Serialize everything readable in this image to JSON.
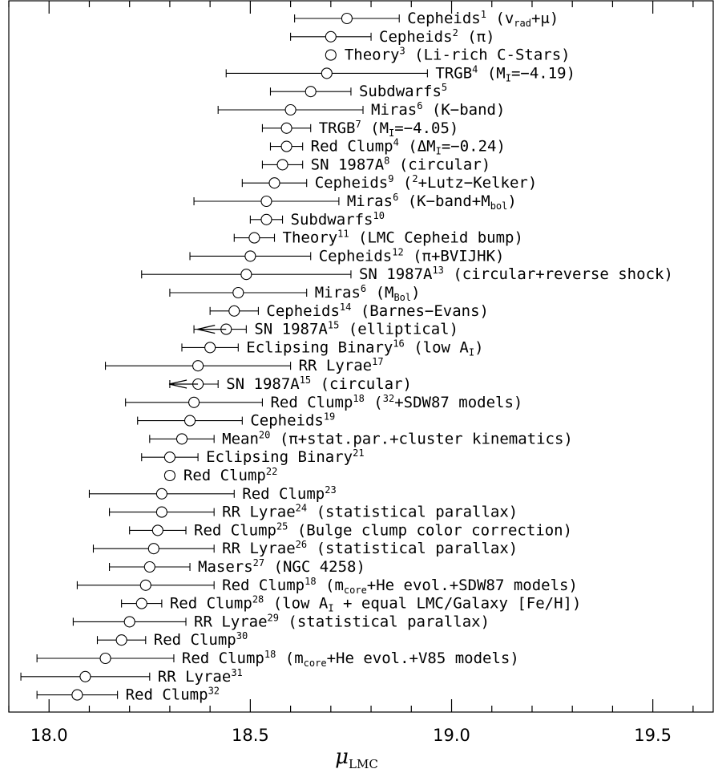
{
  "chart_data": {
    "type": "scatter",
    "title": "",
    "xlabel": "μ",
    "xlabel_sub": "LMC",
    "xlim": [
      17.9,
      19.65
    ],
    "x_ticks": [
      "18.0",
      "18.5",
      "19.0",
      "19.5"
    ],
    "x_tick_values": [
      18.0,
      18.5,
      19.0,
      19.5
    ],
    "grid": false,
    "points": [
      {
        "value": 18.74,
        "low": 18.61,
        "high": 18.87,
        "label": [
          {
            "t": "Cepheids"
          },
          {
            "t": "1",
            "s": "sup"
          },
          {
            "t": " (v"
          },
          {
            "t": "rad",
            "s": "sub"
          },
          {
            "t": "+μ)"
          }
        ]
      },
      {
        "value": 18.7,
        "low": 18.6,
        "high": 18.8,
        "label": [
          {
            "t": "Cepheids"
          },
          {
            "t": "2",
            "s": "sup"
          },
          {
            "t": " (π)"
          }
        ]
      },
      {
        "value": 18.7,
        "low": 18.69,
        "high": 18.71,
        "label": [
          {
            "t": "Theory"
          },
          {
            "t": "3",
            "s": "sup"
          },
          {
            "t": " (Li-rich C-Stars)"
          }
        ]
      },
      {
        "value": 18.69,
        "low": 18.44,
        "high": 18.94,
        "label": [
          {
            "t": "TRGB"
          },
          {
            "t": "4",
            "s": "sup"
          },
          {
            "t": " (M"
          },
          {
            "t": "I",
            "s": "sub"
          },
          {
            "t": "=−4.19)"
          }
        ]
      },
      {
        "value": 18.65,
        "low": 18.55,
        "high": 18.75,
        "label": [
          {
            "t": "Subdwarfs"
          },
          {
            "t": "5",
            "s": "sup"
          }
        ]
      },
      {
        "value": 18.6,
        "low": 18.42,
        "high": 18.78,
        "label": [
          {
            "t": "Miras"
          },
          {
            "t": "6",
            "s": "sup"
          },
          {
            "t": " (K−band)"
          }
        ]
      },
      {
        "value": 18.59,
        "low": 18.53,
        "high": 18.65,
        "label": [
          {
            "t": "TRGB"
          },
          {
            "t": "7",
            "s": "sup"
          },
          {
            "t": " (M"
          },
          {
            "t": "I",
            "s": "sub"
          },
          {
            "t": "=−4.05)"
          }
        ]
      },
      {
        "value": 18.59,
        "low": 18.55,
        "high": 18.63,
        "label": [
          {
            "t": "Red Clump"
          },
          {
            "t": "4",
            "s": "sup"
          },
          {
            "t": " (ΔM"
          },
          {
            "t": "I",
            "s": "sub"
          },
          {
            "t": "=−0.24)"
          }
        ]
      },
      {
        "value": 18.58,
        "low": 18.53,
        "high": 18.63,
        "label": [
          {
            "t": "SN 1987A"
          },
          {
            "t": "8",
            "s": "sup"
          },
          {
            "t": " (circular)"
          }
        ]
      },
      {
        "value": 18.56,
        "low": 18.48,
        "high": 18.64,
        "label": [
          {
            "t": "Cepheids"
          },
          {
            "t": "9",
            "s": "sup"
          },
          {
            "t": " ("
          },
          {
            "t": "2",
            "s": "sup"
          },
          {
            "t": "+Lutz−Kelker)"
          }
        ]
      },
      {
        "value": 18.54,
        "low": 18.36,
        "high": 18.72,
        "label": [
          {
            "t": "Miras"
          },
          {
            "t": "6",
            "s": "sup"
          },
          {
            "t": " (K−band+M"
          },
          {
            "t": "bol",
            "s": "sub"
          },
          {
            "t": ")"
          }
        ]
      },
      {
        "value": 18.54,
        "low": 18.5,
        "high": 18.58,
        "label": [
          {
            "t": "Subdwarfs"
          },
          {
            "t": "10",
            "s": "sup"
          }
        ]
      },
      {
        "value": 18.51,
        "low": 18.46,
        "high": 18.56,
        "label": [
          {
            "t": "Theory"
          },
          {
            "t": "11",
            "s": "sup"
          },
          {
            "t": " (LMC Cepheid bump)"
          }
        ]
      },
      {
        "value": 18.5,
        "low": 18.35,
        "high": 18.65,
        "label": [
          {
            "t": "Cepheids"
          },
          {
            "t": "12",
            "s": "sup"
          },
          {
            "t": " (π+BVIJHK)"
          }
        ]
      },
      {
        "value": 18.49,
        "low": 18.23,
        "high": 18.75,
        "label": [
          {
            "t": "SN 1987A"
          },
          {
            "t": "13",
            "s": "sup"
          },
          {
            "t": " (circular+reverse shock)"
          }
        ]
      },
      {
        "value": 18.47,
        "low": 18.3,
        "high": 18.64,
        "label": [
          {
            "t": "Miras"
          },
          {
            "t": "6",
            "s": "sup"
          },
          {
            "t": " (M"
          },
          {
            "t": "Bol",
            "s": "sub"
          },
          {
            "t": ")"
          }
        ]
      },
      {
        "value": 18.46,
        "low": 18.4,
        "high": 18.52,
        "label": [
          {
            "t": "Cepheids"
          },
          {
            "t": "14",
            "s": "sup"
          },
          {
            "t": " (Barnes−Evans)"
          }
        ]
      },
      {
        "value": 18.44,
        "low": 18.36,
        "high": 18.49,
        "upper_limit": true,
        "label": [
          {
            "t": "SN 1987A"
          },
          {
            "t": "15",
            "s": "sup"
          },
          {
            "t": " (elliptical)"
          }
        ]
      },
      {
        "value": 18.4,
        "low": 18.33,
        "high": 18.47,
        "label": [
          {
            "t": "Eclipsing Binary"
          },
          {
            "t": "16",
            "s": "sup"
          },
          {
            "t": " (low A"
          },
          {
            "t": "I",
            "s": "sub"
          },
          {
            "t": ")"
          }
        ]
      },
      {
        "value": 18.37,
        "low": 18.14,
        "high": 18.6,
        "label": [
          {
            "t": "RR Lyrae"
          },
          {
            "t": "17",
            "s": "sup"
          }
        ]
      },
      {
        "value": 18.37,
        "low": 18.3,
        "high": 18.42,
        "upper_limit": true,
        "label": [
          {
            "t": "SN 1987A"
          },
          {
            "t": "15",
            "s": "sup"
          },
          {
            "t": " (circular)"
          }
        ]
      },
      {
        "value": 18.36,
        "low": 18.19,
        "high": 18.53,
        "label": [
          {
            "t": "Red Clump"
          },
          {
            "t": "18",
            "s": "sup"
          },
          {
            "t": " ("
          },
          {
            "t": "32",
            "s": "sup"
          },
          {
            "t": "+SDW87 models)"
          }
        ]
      },
      {
        "value": 18.35,
        "low": 18.22,
        "high": 18.48,
        "label": [
          {
            "t": "Cepheids"
          },
          {
            "t": "19",
            "s": "sup"
          }
        ]
      },
      {
        "value": 18.33,
        "low": 18.25,
        "high": 18.41,
        "label": [
          {
            "t": "Mean"
          },
          {
            "t": "20",
            "s": "sup"
          },
          {
            "t": " (π+stat.par.+cluster kinematics)"
          }
        ]
      },
      {
        "value": 18.3,
        "low": 18.23,
        "high": 18.37,
        "label": [
          {
            "t": "Eclipsing Binary"
          },
          {
            "t": "21",
            "s": "sup"
          }
        ]
      },
      {
        "value": 18.3,
        "low": 18.29,
        "high": 18.31,
        "label": [
          {
            "t": "Red Clump"
          },
          {
            "t": "22",
            "s": "sup"
          }
        ]
      },
      {
        "value": 18.28,
        "low": 18.1,
        "high": 18.46,
        "label": [
          {
            "t": "Red Clump"
          },
          {
            "t": "23",
            "s": "sup"
          }
        ]
      },
      {
        "value": 18.28,
        "low": 18.15,
        "high": 18.41,
        "label": [
          {
            "t": "RR Lyrae"
          },
          {
            "t": "24",
            "s": "sup"
          },
          {
            "t": " (statistical parallax)"
          }
        ]
      },
      {
        "value": 18.27,
        "low": 18.2,
        "high": 18.34,
        "label": [
          {
            "t": "Red Clump"
          },
          {
            "t": "25",
            "s": "sup"
          },
          {
            "t": " (Bulge clump color correction)"
          }
        ]
      },
      {
        "value": 18.26,
        "low": 18.11,
        "high": 18.41,
        "label": [
          {
            "t": "RR Lyrae"
          },
          {
            "t": "26",
            "s": "sup"
          },
          {
            "t": " (statistical parallax)"
          }
        ]
      },
      {
        "value": 18.25,
        "low": 18.15,
        "high": 18.35,
        "label": [
          {
            "t": "Masers"
          },
          {
            "t": "27",
            "s": "sup"
          },
          {
            "t": " (NGC 4258)"
          }
        ]
      },
      {
        "value": 18.24,
        "low": 18.07,
        "high": 18.41,
        "label": [
          {
            "t": "Red Clump"
          },
          {
            "t": "18",
            "s": "sup"
          },
          {
            "t": " (m"
          },
          {
            "t": "core",
            "s": "sub"
          },
          {
            "t": "+He evol.+SDW87 models)"
          }
        ]
      },
      {
        "value": 18.23,
        "low": 18.18,
        "high": 18.28,
        "label": [
          {
            "t": "Red Clump"
          },
          {
            "t": "28",
            "s": "sup"
          },
          {
            "t": " (low A"
          },
          {
            "t": "I",
            "s": "sub"
          },
          {
            "t": " + equal LMC/Galaxy [Fe/H])"
          }
        ]
      },
      {
        "value": 18.2,
        "low": 18.06,
        "high": 18.34,
        "label": [
          {
            "t": "RR Lyrae"
          },
          {
            "t": "29",
            "s": "sup"
          },
          {
            "t": " (statistical parallax)"
          }
        ]
      },
      {
        "value": 18.18,
        "low": 18.12,
        "high": 18.24,
        "label": [
          {
            "t": "Red Clump"
          },
          {
            "t": "30",
            "s": "sup"
          }
        ]
      },
      {
        "value": 18.14,
        "low": 17.97,
        "high": 18.31,
        "label": [
          {
            "t": "Red Clump"
          },
          {
            "t": "18",
            "s": "sup"
          },
          {
            "t": " (m"
          },
          {
            "t": "core",
            "s": "sub"
          },
          {
            "t": "+He evol.+V85 models)"
          }
        ]
      },
      {
        "value": 18.09,
        "low": 17.93,
        "high": 18.25,
        "label": [
          {
            "t": "RR Lyrae"
          },
          {
            "t": "31",
            "s": "sup"
          }
        ]
      },
      {
        "value": 18.07,
        "low": 17.97,
        "high": 18.17,
        "label": [
          {
            "t": "Red Clump"
          },
          {
            "t": "32",
            "s": "sup"
          }
        ]
      }
    ]
  }
}
